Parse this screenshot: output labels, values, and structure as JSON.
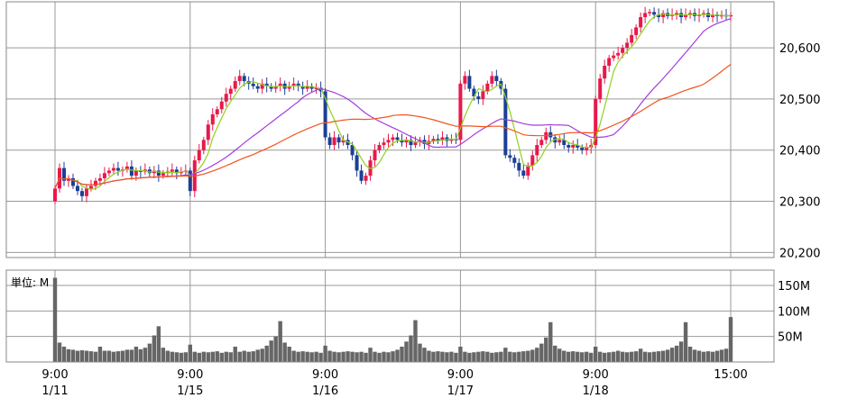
{
  "chart_data": {
    "type": "candlestick",
    "title": "",
    "x_ticks": [
      {
        "time": "9:00",
        "date": "1/11",
        "index": 0
      },
      {
        "time": "9:00",
        "date": "1/15",
        "index": 30
      },
      {
        "time": "9:00",
        "date": "1/16",
        "index": 60
      },
      {
        "time": "9:00",
        "date": "1/17",
        "index": 90
      },
      {
        "time": "9:00",
        "date": "1/18",
        "index": 120
      },
      {
        "time": "15:00",
        "date": "",
        "index": 150
      }
    ],
    "price_axis": {
      "ylim": [
        20190,
        20690
      ],
      "ticks": [
        20200,
        20300,
        20400,
        20500,
        20600
      ],
      "tick_labels": [
        "20,200",
        "20,300",
        "20,400",
        "20,500",
        "20,600"
      ]
    },
    "volume_axis": {
      "unit_label": "単位: M",
      "ylim": [
        0,
        180
      ],
      "ticks": [
        50,
        100,
        150
      ],
      "tick_labels": [
        "50M",
        "100M",
        "150M"
      ]
    },
    "colors": {
      "up": "#e8194a",
      "down": "#1c3f96",
      "volume": "#666666",
      "ma_short": "#8fd21e",
      "ma_mid": "#a43ce0",
      "ma_long": "#f2541b",
      "grid": "#999999",
      "frame": "#888888"
    },
    "closes": [
      20325,
      20365,
      20340,
      20345,
      20330,
      20320,
      20310,
      20325,
      20330,
      20340,
      20345,
      20355,
      20360,
      20365,
      20360,
      20362,
      20368,
      20350,
      20360,
      20358,
      20362,
      20355,
      20360,
      20350,
      20355,
      20358,
      20362,
      20355,
      20358,
      20360,
      20320,
      20380,
      20400,
      20420,
      20450,
      20470,
      20480,
      20495,
      20510,
      20520,
      20535,
      20545,
      20535,
      20530,
      20525,
      20520,
      20530,
      20525,
      20520,
      20525,
      20530,
      20520,
      20525,
      20530,
      20525,
      20520,
      20525,
      20520,
      20522,
      20515,
      20425,
      20410,
      20425,
      20415,
      20420,
      20410,
      20390,
      20360,
      20340,
      20350,
      20380,
      20400,
      20410,
      20415,
      20420,
      20425,
      20420,
      20415,
      20420,
      20410,
      20415,
      20420,
      20412,
      20418,
      20422,
      20420,
      20425,
      20418,
      20422,
      20420,
      20530,
      20545,
      20520,
      20505,
      20500,
      20515,
      20530,
      20545,
      20535,
      20520,
      20390,
      20385,
      20375,
      20360,
      20350,
      20370,
      20390,
      20410,
      20420,
      20435,
      20425,
      20415,
      20420,
      20410,
      20405,
      20410,
      20405,
      20400,
      20405,
      20410,
      20500,
      20540,
      20565,
      20580,
      20585,
      20590,
      20600,
      20610,
      20625,
      20640,
      20660,
      20668,
      20670,
      20665,
      20660,
      20668,
      20662,
      20665,
      20668,
      20660,
      20665,
      20668,
      20662,
      20665,
      20668,
      20660,
      20665,
      20662,
      20664,
      20662,
      20664
    ],
    "volumes": [
      165,
      38,
      30,
      25,
      24,
      22,
      23,
      22,
      21,
      20,
      30,
      22,
      22,
      20,
      21,
      22,
      24,
      24,
      30,
      25,
      28,
      36,
      52,
      70,
      28,
      22,
      20,
      19,
      18,
      19,
      34,
      20,
      18,
      20,
      19,
      20,
      21,
      18,
      20,
      19,
      30,
      20,
      22,
      20,
      21,
      24,
      26,
      32,
      42,
      50,
      80,
      38,
      30,
      22,
      20,
      21,
      20,
      19,
      20,
      18,
      32,
      22,
      20,
      19,
      20,
      21,
      20,
      19,
      20,
      18,
      28,
      20,
      18,
      20,
      19,
      21,
      24,
      30,
      40,
      52,
      82,
      36,
      28,
      22,
      20,
      21,
      20,
      19,
      20,
      18,
      30,
      20,
      18,
      19,
      20,
      21,
      20,
      18,
      19,
      20,
      28,
      20,
      19,
      20,
      21,
      22,
      24,
      28,
      36,
      48,
      78,
      32,
      26,
      22,
      20,
      21,
      20,
      19,
      20,
      18,
      30,
      20,
      18,
      19,
      20,
      22,
      20,
      19,
      20,
      21,
      26,
      20,
      19,
      20,
      21,
      22,
      24,
      28,
      32,
      40,
      78,
      30,
      24,
      22,
      20,
      21,
      20,
      22,
      24,
      26,
      88
    ]
  }
}
